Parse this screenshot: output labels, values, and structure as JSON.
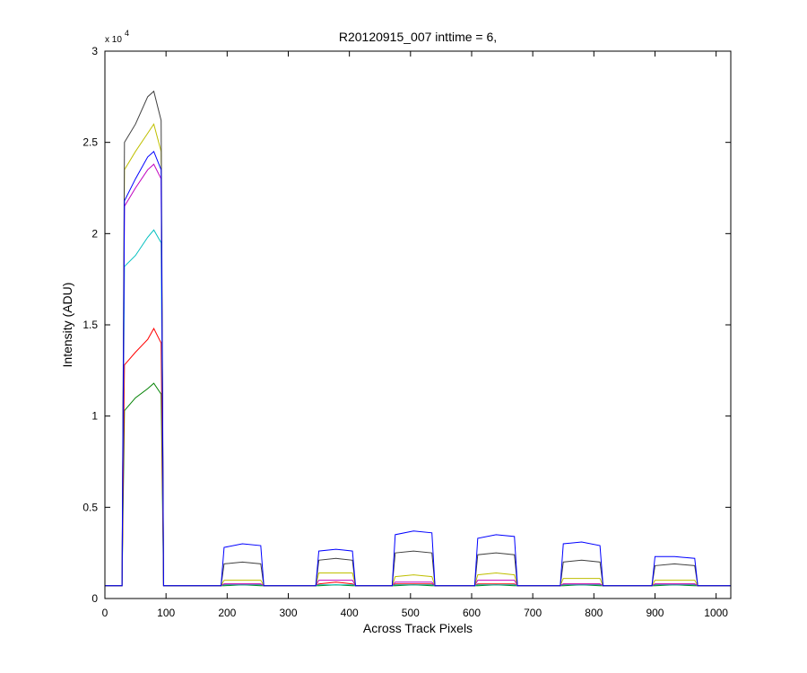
{
  "chart_data": {
    "type": "line",
    "title": "R20120915_007 inttime = 6,",
    "x_label": "Across Track Pixels",
    "y_label": "Intensity (ADU)",
    "y_multiplier": "x 10",
    "y_multiplier_exponent": "4",
    "x": [
      0,
      28,
      32,
      50,
      70,
      80,
      92,
      96,
      190,
      195,
      225,
      255,
      260,
      345,
      350,
      378,
      405,
      410,
      470,
      475,
      505,
      535,
      540,
      605,
      610,
      640,
      670,
      675,
      745,
      750,
      780,
      810,
      815,
      895,
      900,
      932,
      965,
      970,
      1024
    ],
    "xlim": [
      0,
      1024
    ],
    "xticks": [
      0,
      100,
      200,
      300,
      400,
      500,
      600,
      700,
      800,
      900,
      1000
    ],
    "ylim": [
      0,
      3
    ],
    "yticks": [
      0,
      0.5,
      1,
      1.5,
      2,
      2.5,
      3
    ],
    "series": [
      {
        "color": "#008000",
        "values": [
          0.07,
          0.07,
          1.03,
          1.1,
          1.15,
          1.18,
          1.12,
          0.07,
          0.07,
          0.07,
          0.075,
          0.07,
          0.07,
          0.07,
          0.07,
          0.075,
          0.07,
          0.07,
          0.07,
          0.07,
          0.075,
          0.07,
          0.07,
          0.07,
          0.07,
          0.075,
          0.07,
          0.07,
          0.07,
          0.07,
          0.075,
          0.07,
          0.07,
          0.07,
          0.07,
          0.075,
          0.07,
          0.07,
          0.07
        ]
      },
      {
        "color": "#ff0000",
        "values": [
          0.07,
          0.07,
          1.28,
          1.35,
          1.42,
          1.48,
          1.4,
          0.07,
          0.07,
          0.08,
          0.08,
          0.08,
          0.07,
          0.07,
          0.08,
          0.09,
          0.08,
          0.07,
          0.07,
          0.08,
          0.08,
          0.08,
          0.07,
          0.07,
          0.08,
          0.08,
          0.08,
          0.07,
          0.07,
          0.08,
          0.08,
          0.08,
          0.07,
          0.07,
          0.08,
          0.08,
          0.08,
          0.07,
          0.07
        ]
      },
      {
        "color": "#00bfbf",
        "values": [
          0.07,
          0.07,
          1.82,
          1.88,
          1.98,
          2.02,
          1.95,
          0.07,
          0.07,
          0.075,
          0.075,
          0.075,
          0.07,
          0.07,
          0.075,
          0.075,
          0.075,
          0.07,
          0.07,
          0.075,
          0.075,
          0.075,
          0.07,
          0.07,
          0.075,
          0.075,
          0.075,
          0.07,
          0.07,
          0.075,
          0.075,
          0.075,
          0.07,
          0.07,
          0.075,
          0.075,
          0.075,
          0.07,
          0.07
        ]
      },
      {
        "color": "#bf00bf",
        "values": [
          0.07,
          0.07,
          2.15,
          2.25,
          2.35,
          2.38,
          2.3,
          0.07,
          0.07,
          0.08,
          0.08,
          0.08,
          0.07,
          0.07,
          0.1,
          0.1,
          0.1,
          0.07,
          0.07,
          0.09,
          0.09,
          0.09,
          0.07,
          0.07,
          0.1,
          0.1,
          0.1,
          0.07,
          0.07,
          0.08,
          0.08,
          0.08,
          0.07,
          0.07,
          0.08,
          0.08,
          0.08,
          0.07,
          0.07
        ]
      },
      {
        "color": "#bfbf00",
        "values": [
          0.07,
          0.07,
          2.35,
          2.45,
          2.55,
          2.6,
          2.45,
          0.07,
          0.07,
          0.1,
          0.1,
          0.1,
          0.07,
          0.07,
          0.14,
          0.14,
          0.14,
          0.07,
          0.07,
          0.12,
          0.13,
          0.12,
          0.07,
          0.07,
          0.13,
          0.14,
          0.13,
          0.07,
          0.07,
          0.11,
          0.11,
          0.11,
          0.07,
          0.07,
          0.1,
          0.1,
          0.1,
          0.07,
          0.07
        ]
      },
      {
        "color": "#404040",
        "values": [
          0.07,
          0.07,
          2.5,
          2.6,
          2.75,
          2.78,
          2.62,
          0.07,
          0.07,
          0.19,
          0.2,
          0.19,
          0.07,
          0.07,
          0.21,
          0.22,
          0.21,
          0.07,
          0.07,
          0.25,
          0.26,
          0.25,
          0.07,
          0.07,
          0.24,
          0.25,
          0.24,
          0.07,
          0.07,
          0.2,
          0.21,
          0.2,
          0.07,
          0.07,
          0.18,
          0.19,
          0.18,
          0.07,
          0.07
        ]
      },
      {
        "color": "#0000ff",
        "values": [
          0.07,
          0.07,
          2.18,
          2.3,
          2.42,
          2.45,
          2.35,
          0.07,
          0.07,
          0.28,
          0.3,
          0.29,
          0.07,
          0.07,
          0.26,
          0.27,
          0.26,
          0.07,
          0.07,
          0.35,
          0.37,
          0.36,
          0.07,
          0.07,
          0.33,
          0.35,
          0.34,
          0.07,
          0.07,
          0.3,
          0.31,
          0.29,
          0.07,
          0.07,
          0.23,
          0.23,
          0.22,
          0.07,
          0.07
        ]
      }
    ]
  }
}
